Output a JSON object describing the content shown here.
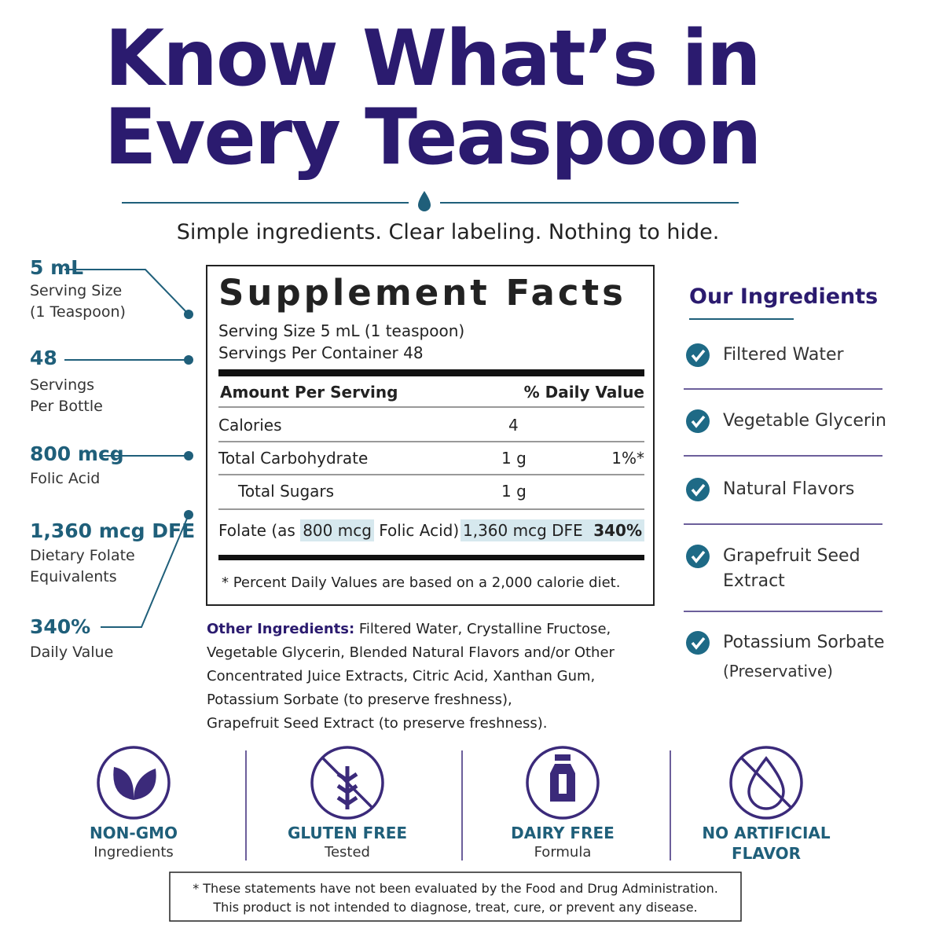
{
  "header": {
    "title_line1": "Know What’s in",
    "title_line2": "Every Teaspoon",
    "subtitle": "Simple ingredients. Clear labeling. Nothing to hide."
  },
  "callouts": [
    {
      "value": "5 mL",
      "lines": [
        "Serving Size",
        "(1 Teaspoon)"
      ]
    },
    {
      "value": "48",
      "lines": [
        "Servings",
        "Per Bottle"
      ]
    },
    {
      "value": "800 mcg",
      "lines": [
        "Folic Acid"
      ]
    },
    {
      "value": "1,360 mcg DFE",
      "lines": [
        "Dietary Folate",
        "Equivalents"
      ]
    },
    {
      "value": "340%",
      "lines": [
        "Daily Value"
      ]
    }
  ],
  "facts": {
    "title": "Supplement Facts",
    "serving_size": "Serving Size 5 mL (1 teaspoon)",
    "servings": "Servings Per Container 48",
    "col_amount": "Amount Per Serving",
    "col_dv": "% Daily Value",
    "rows": [
      {
        "name": "Calories",
        "amount": "4"
      },
      {
        "name": "Total Carbohydrate",
        "amount": "1 g",
        "dv": "1%*"
      },
      {
        "name": "Total Sugars",
        "amount": "1 g"
      }
    ],
    "folate": {
      "prefix": "Folate (as",
      "highlight": "800 mcg",
      "suffix": "Folic Acid)",
      "amount": "1,360 mcg DFE",
      "dv": "340%"
    },
    "footnote": "* Percent Daily Values are based on a 2,000 calorie diet."
  },
  "other_ingredients": {
    "label": "Other Ingredients:",
    "lines": [
      "Filtered Water, Crystalline Fructose,",
      "Vegetable Glycerin, Blended Natural Flavors and/or Other",
      "Concentrated Juice Extracts, Citric Acid, Xanthan Gum,",
      "Potassium Sorbate (to preserve freshness),",
      "Grapefruit Seed Extract (to preserve freshness)."
    ]
  },
  "our_ingredients": {
    "title": "Our Ingredients",
    "items": [
      [
        "Filtered Water"
      ],
      [
        "Vegetable Glycerin"
      ],
      [
        "Natural Flavors"
      ],
      [
        "Grapefruit Seed",
        "Extract"
      ],
      [
        "Potassium Sorbate",
        "(Preservative)"
      ]
    ]
  },
  "badges": [
    {
      "title": [
        "NON-GMO"
      ],
      "subtitle": "Ingredients"
    },
    {
      "title": [
        "GLUTEN FREE"
      ],
      "subtitle": "Tested"
    },
    {
      "title": [
        "DAIRY FREE"
      ],
      "subtitle": "Formula"
    },
    {
      "title": [
        "NO ARTIFICIAL",
        "FLAVOR"
      ]
    }
  ],
  "disclaimer": [
    "* These statements have not been evaluated by the Food and Drug Administration.",
    "This product is not intended to diagnose, treat, cure, or prevent any disease."
  ]
}
